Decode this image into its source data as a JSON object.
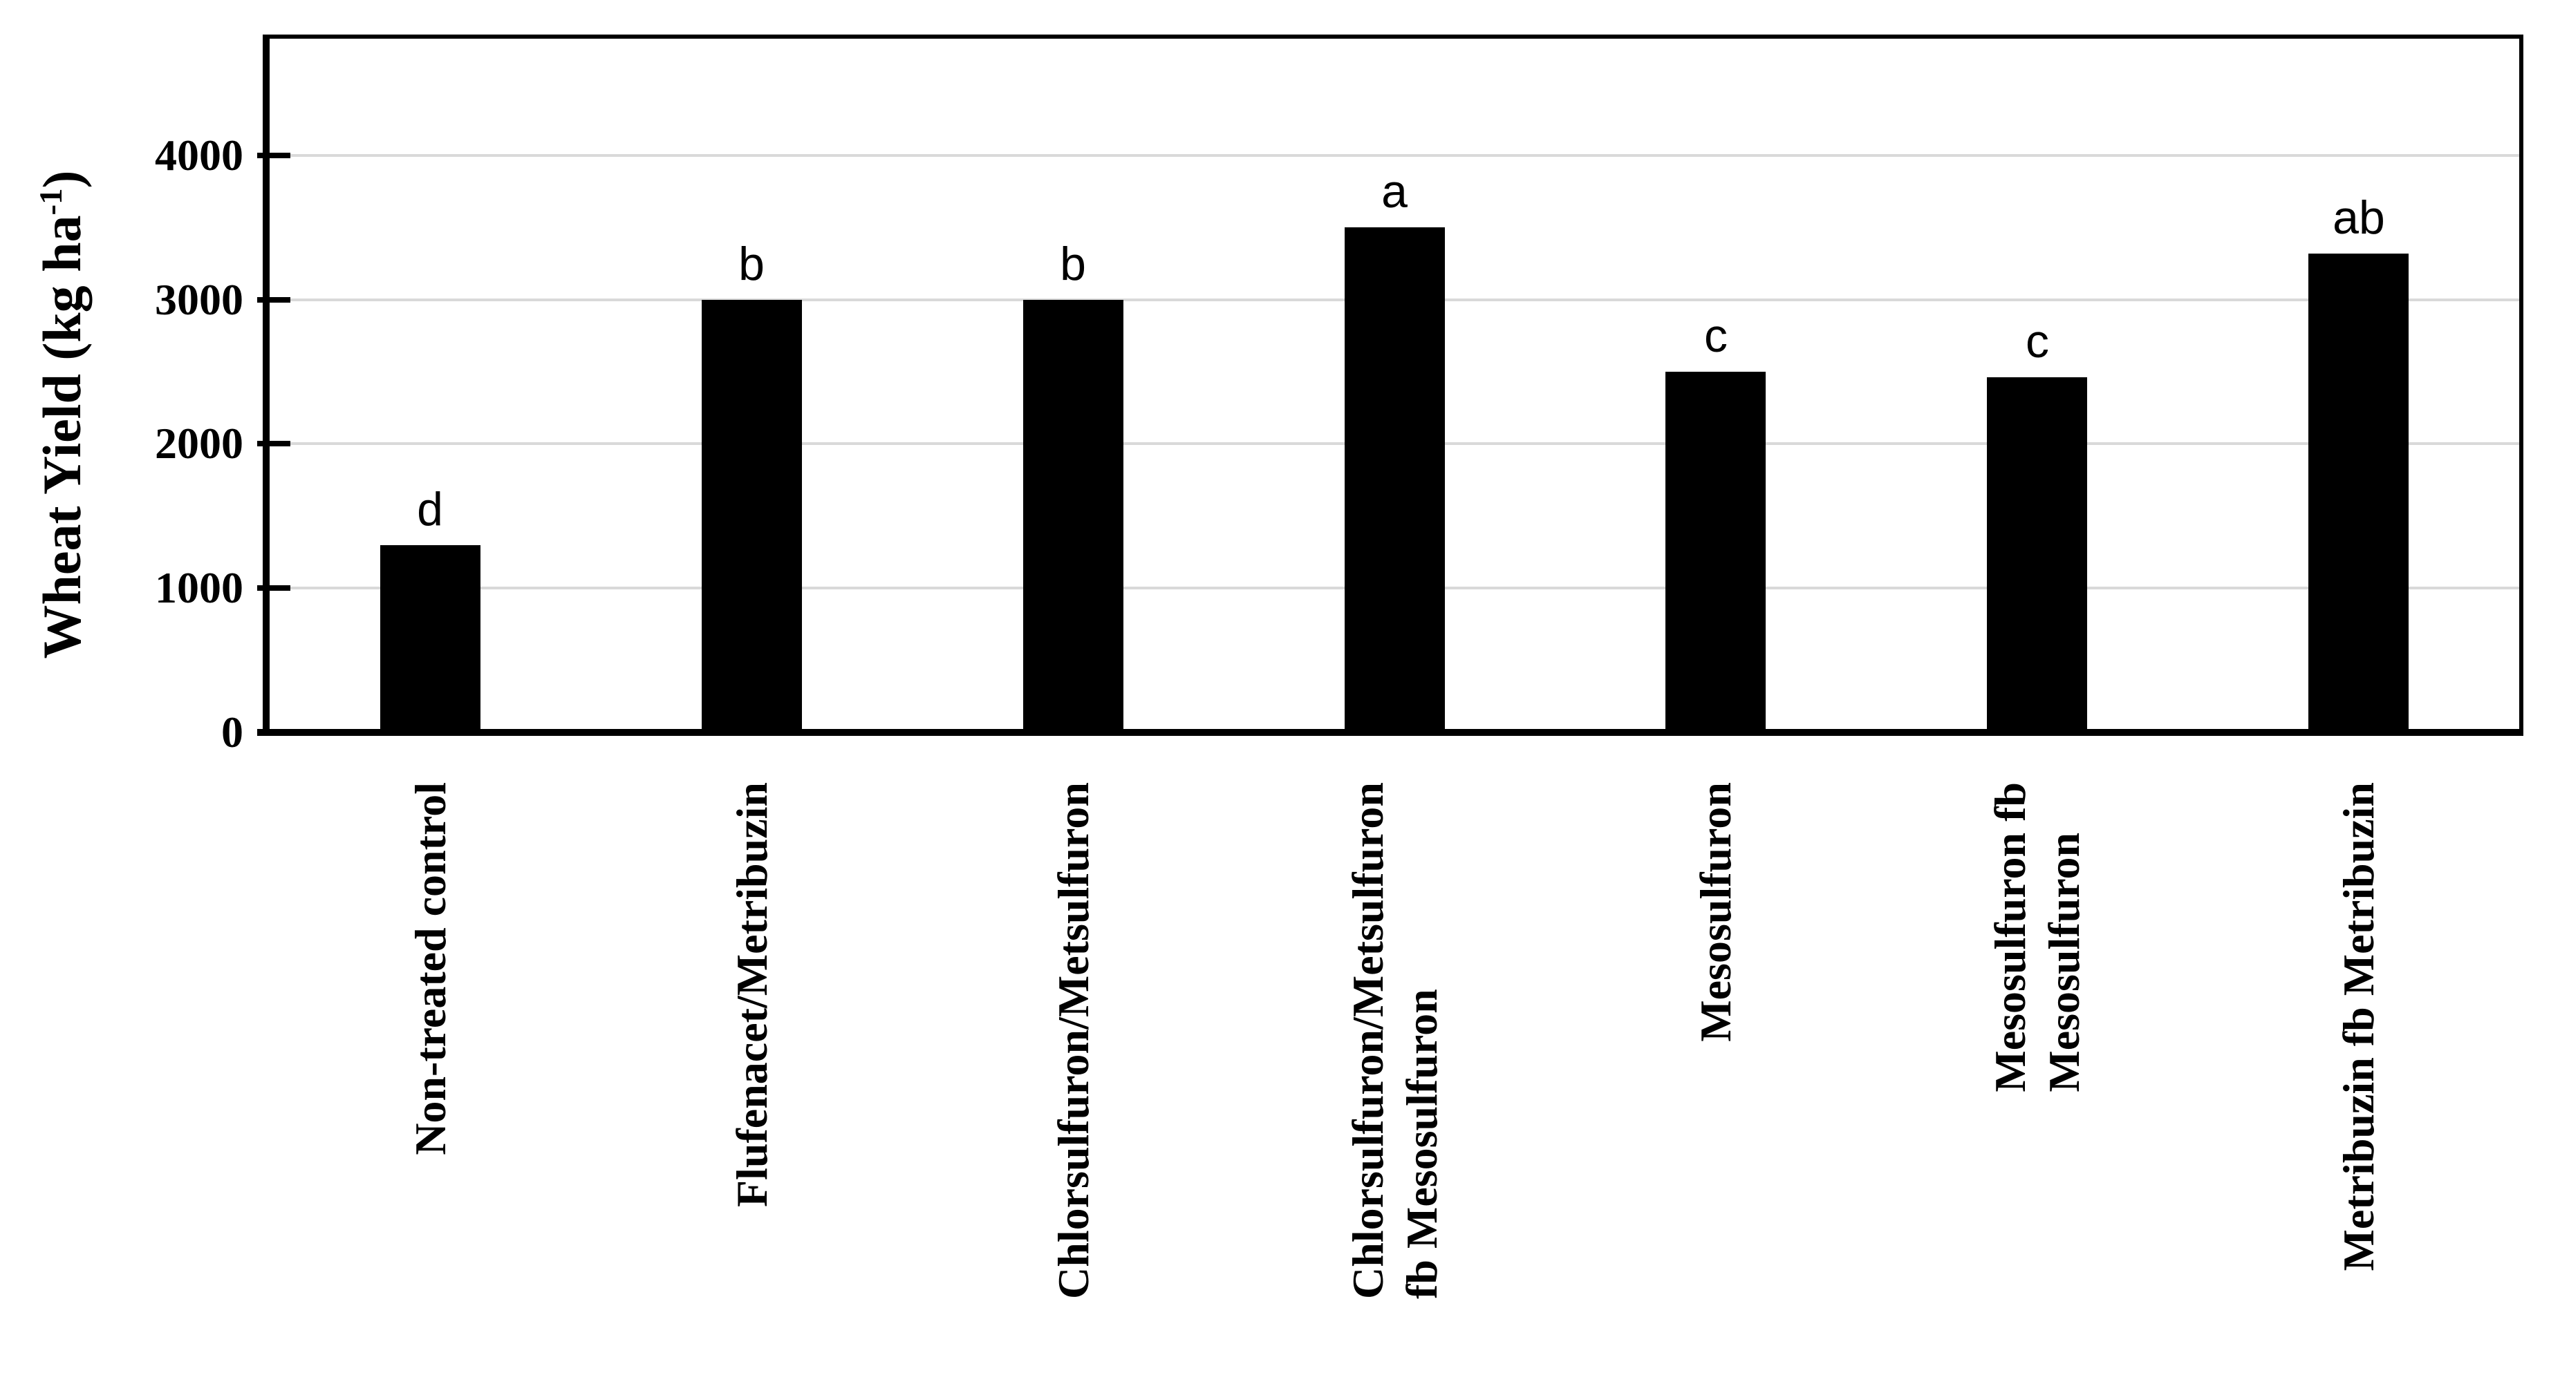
{
  "chart_data": {
    "type": "bar",
    "title": "",
    "ylabel_prefix": "Wheat Yield (kg ha",
    "ylabel_sup": "-1",
    "ylabel_suffix": ")",
    "xlabel": "",
    "categories": [
      {
        "lines": [
          "Non-treated control"
        ]
      },
      {
        "lines": [
          "Flufenacet/Metribuzin"
        ]
      },
      {
        "lines": [
          "Chlorsulfuron/Metsulfuron"
        ]
      },
      {
        "lines": [
          "Chlorsulfuron/Metsulfuron",
          "fb Mesosulfuron"
        ]
      },
      {
        "lines": [
          "Mesosulfuron"
        ]
      },
      {
        "lines": [
          "Mesosulfuron fb",
          "Mesosulfuron"
        ]
      },
      {
        "lines": [
          "Metribuzin fb Metribuzin"
        ]
      }
    ],
    "values": [
      1300,
      3000,
      3000,
      3500,
      2500,
      2460,
      3320
    ],
    "significance_letters": [
      "d",
      "b",
      "b",
      "a",
      "c",
      "c",
      "ab"
    ],
    "yticks": [
      0,
      1000,
      2000,
      3000,
      4000
    ],
    "ylim": [
      0,
      4840
    ],
    "grid": true,
    "legend": "none",
    "bar_color": "#000000",
    "gridline_color": "#d9d9d9",
    "frame_color": "#000000",
    "text_color": "#000000",
    "background_color": "#ffffff"
  }
}
